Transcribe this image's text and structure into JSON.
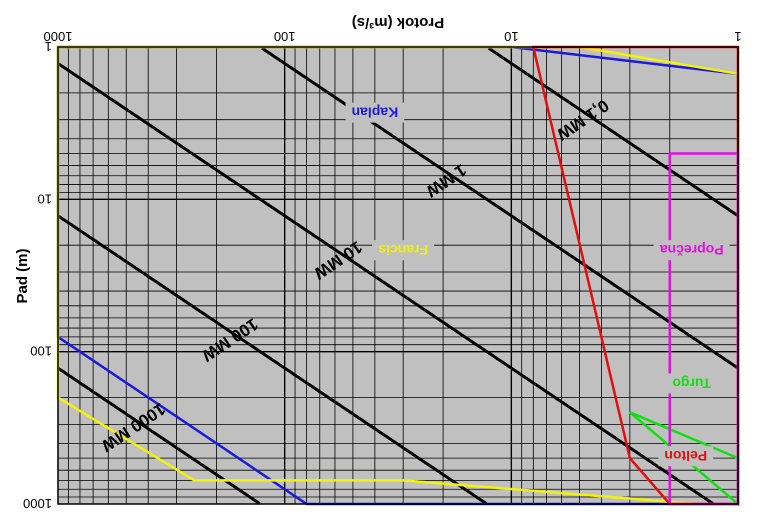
{
  "chart_data": {
    "type": "line",
    "title": "",
    "xlabel": "Protok (m³/s)",
    "ylabel": "Pad (m)",
    "x_scale": "log",
    "y_scale": "log",
    "xlim": [
      1,
      1000
    ],
    "ylim": [
      1,
      1000
    ],
    "orientation": "rotated 180 degrees (text appears upside down)",
    "x_ticks": [
      "1",
      "10",
      "100",
      "1000"
    ],
    "y_ticks": [
      "1",
      "10",
      "100",
      "1000"
    ],
    "grid": true,
    "background": "#c0c0c0",
    "power_lines": [
      {
        "label": "0,1 MW",
        "power_mw": 0.1
      },
      {
        "label": "1 MW",
        "power_mw": 1
      },
      {
        "label": "10 MW",
        "power_mw": 10
      },
      {
        "label": "100 MW",
        "power_mw": 100
      },
      {
        "label": "1000 MW",
        "power_mw": 1000
      }
    ],
    "series": [
      {
        "name": "Kaplan",
        "color": "#1a1adb",
        "x": [
          1,
          80,
          1000,
          1000,
          1000,
          500,
          10,
          1
        ],
        "y": [
          1000,
          1000,
          80,
          10,
          1,
          1,
          1,
          1.5
        ]
      },
      {
        "name": "Francis",
        "color": "#f2f20a",
        "x": [
          1,
          1.5,
          30,
          250,
          1000,
          1000,
          1000,
          200,
          5,
          1
        ],
        "y": [
          1000,
          1000,
          700,
          700,
          200,
          10,
          1,
          1,
          1,
          1.5
        ]
      },
      {
        "name": "Pelton",
        "color": "#e01010",
        "x": [
          1,
          2,
          3,
          8,
          2,
          1
        ],
        "y": [
          1000,
          1000,
          500,
          1,
          1,
          1
        ]
      },
      {
        "name": "Turgo",
        "color": "#10e010",
        "x": [
          1,
          1,
          3,
          1
        ],
        "y": [
          500,
          1000,
          250,
          500
        ]
      },
      {
        "name": "Poprečna",
        "color": "#e010e0",
        "x": [
          1,
          1,
          2,
          2,
          1
        ],
        "y": [
          5,
          1000,
          1000,
          5,
          5
        ]
      }
    ]
  }
}
